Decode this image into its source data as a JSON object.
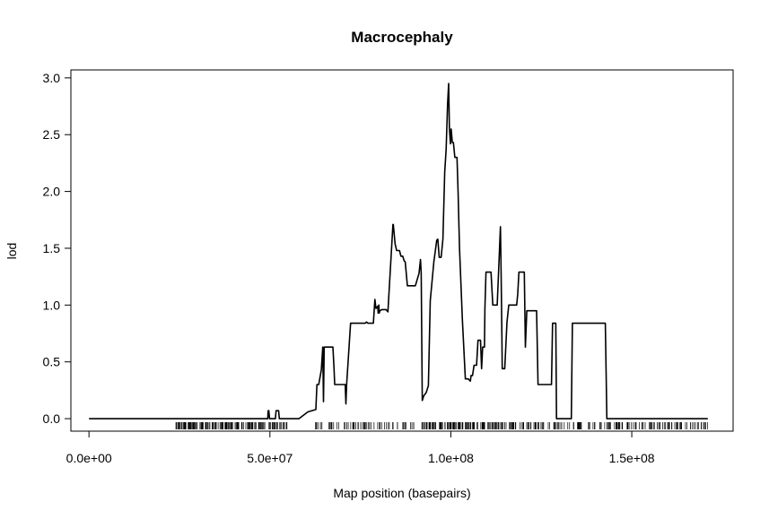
{
  "chart_data": {
    "type": "line",
    "title": "Macrocephaly",
    "xlabel": "Map position (basepairs)",
    "ylabel": "lod",
    "xlim": [
      -5000000,
      178000000
    ],
    "ylim": [
      -0.11,
      3.07
    ],
    "x_ticks": [
      0,
      50000000,
      100000000,
      150000000
    ],
    "x_tick_labels": [
      "0.0e+00",
      "5.0e+07",
      "1.0e+08",
      "1.5e+08"
    ],
    "y_ticks": [
      0,
      0.5,
      1,
      1.5,
      2,
      2.5,
      3
    ],
    "y_tick_labels": [
      "0.0",
      "0.5",
      "1.0",
      "1.5",
      "2.0",
      "2.5",
      "3.0"
    ],
    "grid": false,
    "series": [
      {
        "color": "#000000",
        "x": [
          0,
          49400000,
          49500000,
          49700000,
          49900000,
          50100000,
          51500000,
          51700000,
          52400000,
          52600000,
          58000000,
          60500000,
          62700000,
          63000000,
          63500000,
          64200000,
          64600000,
          64800000,
          65000000,
          65400000,
          67400000,
          67700000,
          67900000,
          70800000,
          71000000,
          71200000,
          72300000,
          72700000,
          76300000,
          76700000,
          77100000,
          77500000,
          78600000,
          79000000,
          79300000,
          79800000,
          79900000,
          80100000,
          80200000,
          80400000,
          80900000,
          82100000,
          82600000,
          84000000,
          84100000,
          84600000,
          85000000,
          85200000,
          85800000,
          86200000,
          86700000,
          87100000,
          87400000,
          88000000,
          89100000,
          90200000,
          91200000,
          91600000,
          91800000,
          92100000,
          92500000,
          93200000,
          93800000,
          94300000,
          95300000,
          96100000,
          96400000,
          96800000,
          97300000,
          97800000,
          98300000,
          98700000,
          99100000,
          99400000,
          99600000,
          99900000,
          100100000,
          100400000,
          100700000,
          101100000,
          101700000,
          102000000,
          102400000,
          103200000,
          104000000,
          104800000,
          105400000,
          105600000,
          106000000,
          106400000,
          107100000,
          107500000,
          108200000,
          108500000,
          108800000,
          109000000,
          109300000,
          109400000,
          109700000,
          110200000,
          110500000,
          111100000,
          111600000,
          112800000,
          113700000,
          113900000,
          114100000,
          114200000,
          114600000,
          114900000,
          115500000,
          116000000,
          116300000,
          116500000,
          118200000,
          118500000,
          118800000,
          120300000,
          120600000,
          121000000,
          123700000,
          124100000,
          127800000,
          128100000,
          129000000,
          129200000,
          133300000,
          133600000,
          142700000,
          143100000,
          171000000
        ],
        "y": [
          0,
          0,
          0.07,
          0.07,
          0,
          0,
          0,
          0.07,
          0.07,
          0,
          0,
          0.06,
          0.08,
          0.3,
          0.3,
          0.43,
          0.63,
          0.15,
          0.63,
          0.63,
          0.63,
          0.45,
          0.3,
          0.3,
          0.13,
          0.3,
          0.84,
          0.84,
          0.84,
          0.85,
          0.84,
          0.84,
          0.84,
          1.05,
          0.97,
          0.99,
          0.93,
          1.0,
          0.93,
          0.95,
          0.96,
          0.96,
          0.94,
          1.71,
          1.71,
          1.54,
          1.48,
          1.48,
          1.48,
          1.43,
          1.43,
          1.39,
          1.38,
          1.17,
          1.17,
          1.17,
          1.28,
          1.4,
          1.28,
          0.16,
          0.2,
          0.23,
          0.29,
          1.04,
          1.38,
          1.57,
          1.58,
          1.42,
          1.42,
          1.58,
          2.17,
          2.37,
          2.77,
          2.95,
          2.56,
          2.42,
          2.55,
          2.43,
          2.43,
          2.3,
          2.3,
          2.0,
          1.5,
          0.87,
          0.35,
          0.35,
          0.33,
          0.38,
          0.38,
          0.47,
          0.47,
          0.69,
          0.69,
          0.44,
          0.63,
          0.63,
          0.63,
          0.97,
          1.29,
          1.29,
          1.29,
          1.29,
          1.0,
          1.0,
          1.69,
          1.26,
          0.75,
          0.44,
          0.44,
          0.44,
          0.85,
          1.0,
          1.0,
          1.0,
          1.0,
          1.1,
          1.29,
          1.29,
          0.63,
          0.95,
          0.95,
          0.3,
          0.3,
          0.84,
          0.84,
          0.0,
          0.0,
          0.84,
          0.84,
          0.0,
          0.0
        ]
      }
    ],
    "markers": [
      {
        "from": 24000000,
        "to": 55000000,
        "count": 170
      },
      {
        "from": 62000000,
        "to": 90000000,
        "count": 60
      },
      {
        "from": 92000000,
        "to": 115000000,
        "count": 120
      },
      {
        "from": 115000000,
        "to": 135000000,
        "count": 55
      },
      {
        "from": 135000000,
        "to": 171000000,
        "count": 110
      }
    ]
  }
}
